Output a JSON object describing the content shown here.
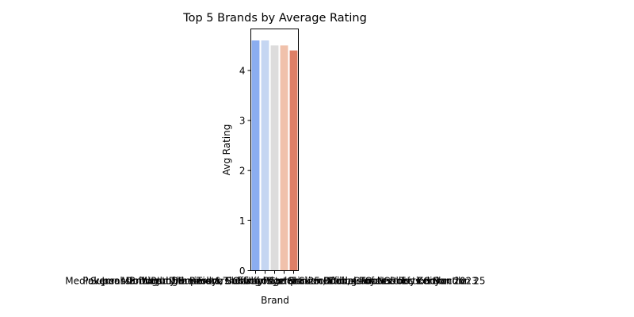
{
  "chart_data": {
    "type": "bar",
    "title": "Top 5 Brands by Average Rating",
    "xlabel": "Brand",
    "ylabel": "Avg Rating",
    "ylim": [
      0,
      4.83
    ],
    "yticks": [
      0,
      1,
      2,
      3,
      4
    ],
    "grid": false,
    "categories": [
      "Mediaversal Dome Jungle Resort, Safari Lodge & Surroundings of Nairobi, Kenya",
      "Dogs of the Tokyo Subway System: 25 Official Routes",
      "Pokemon Brilliant Diamond & Shining Pearl Trainer Guide, Toys Collection Bundle",
      "Super Mario Party Superstars Official Companion, Deluxe Collector's Edition 2023",
      "Jurassic World Dominion: The Ultimate Sticker Book, Games & Toys Collection 25"
    ],
    "values": [
      4.6,
      4.6,
      4.5,
      4.5,
      4.4
    ],
    "colors": [
      "#8badf0",
      "#c5d6f2",
      "#dddcdc",
      "#f0c1ab",
      "#de7f66"
    ]
  }
}
